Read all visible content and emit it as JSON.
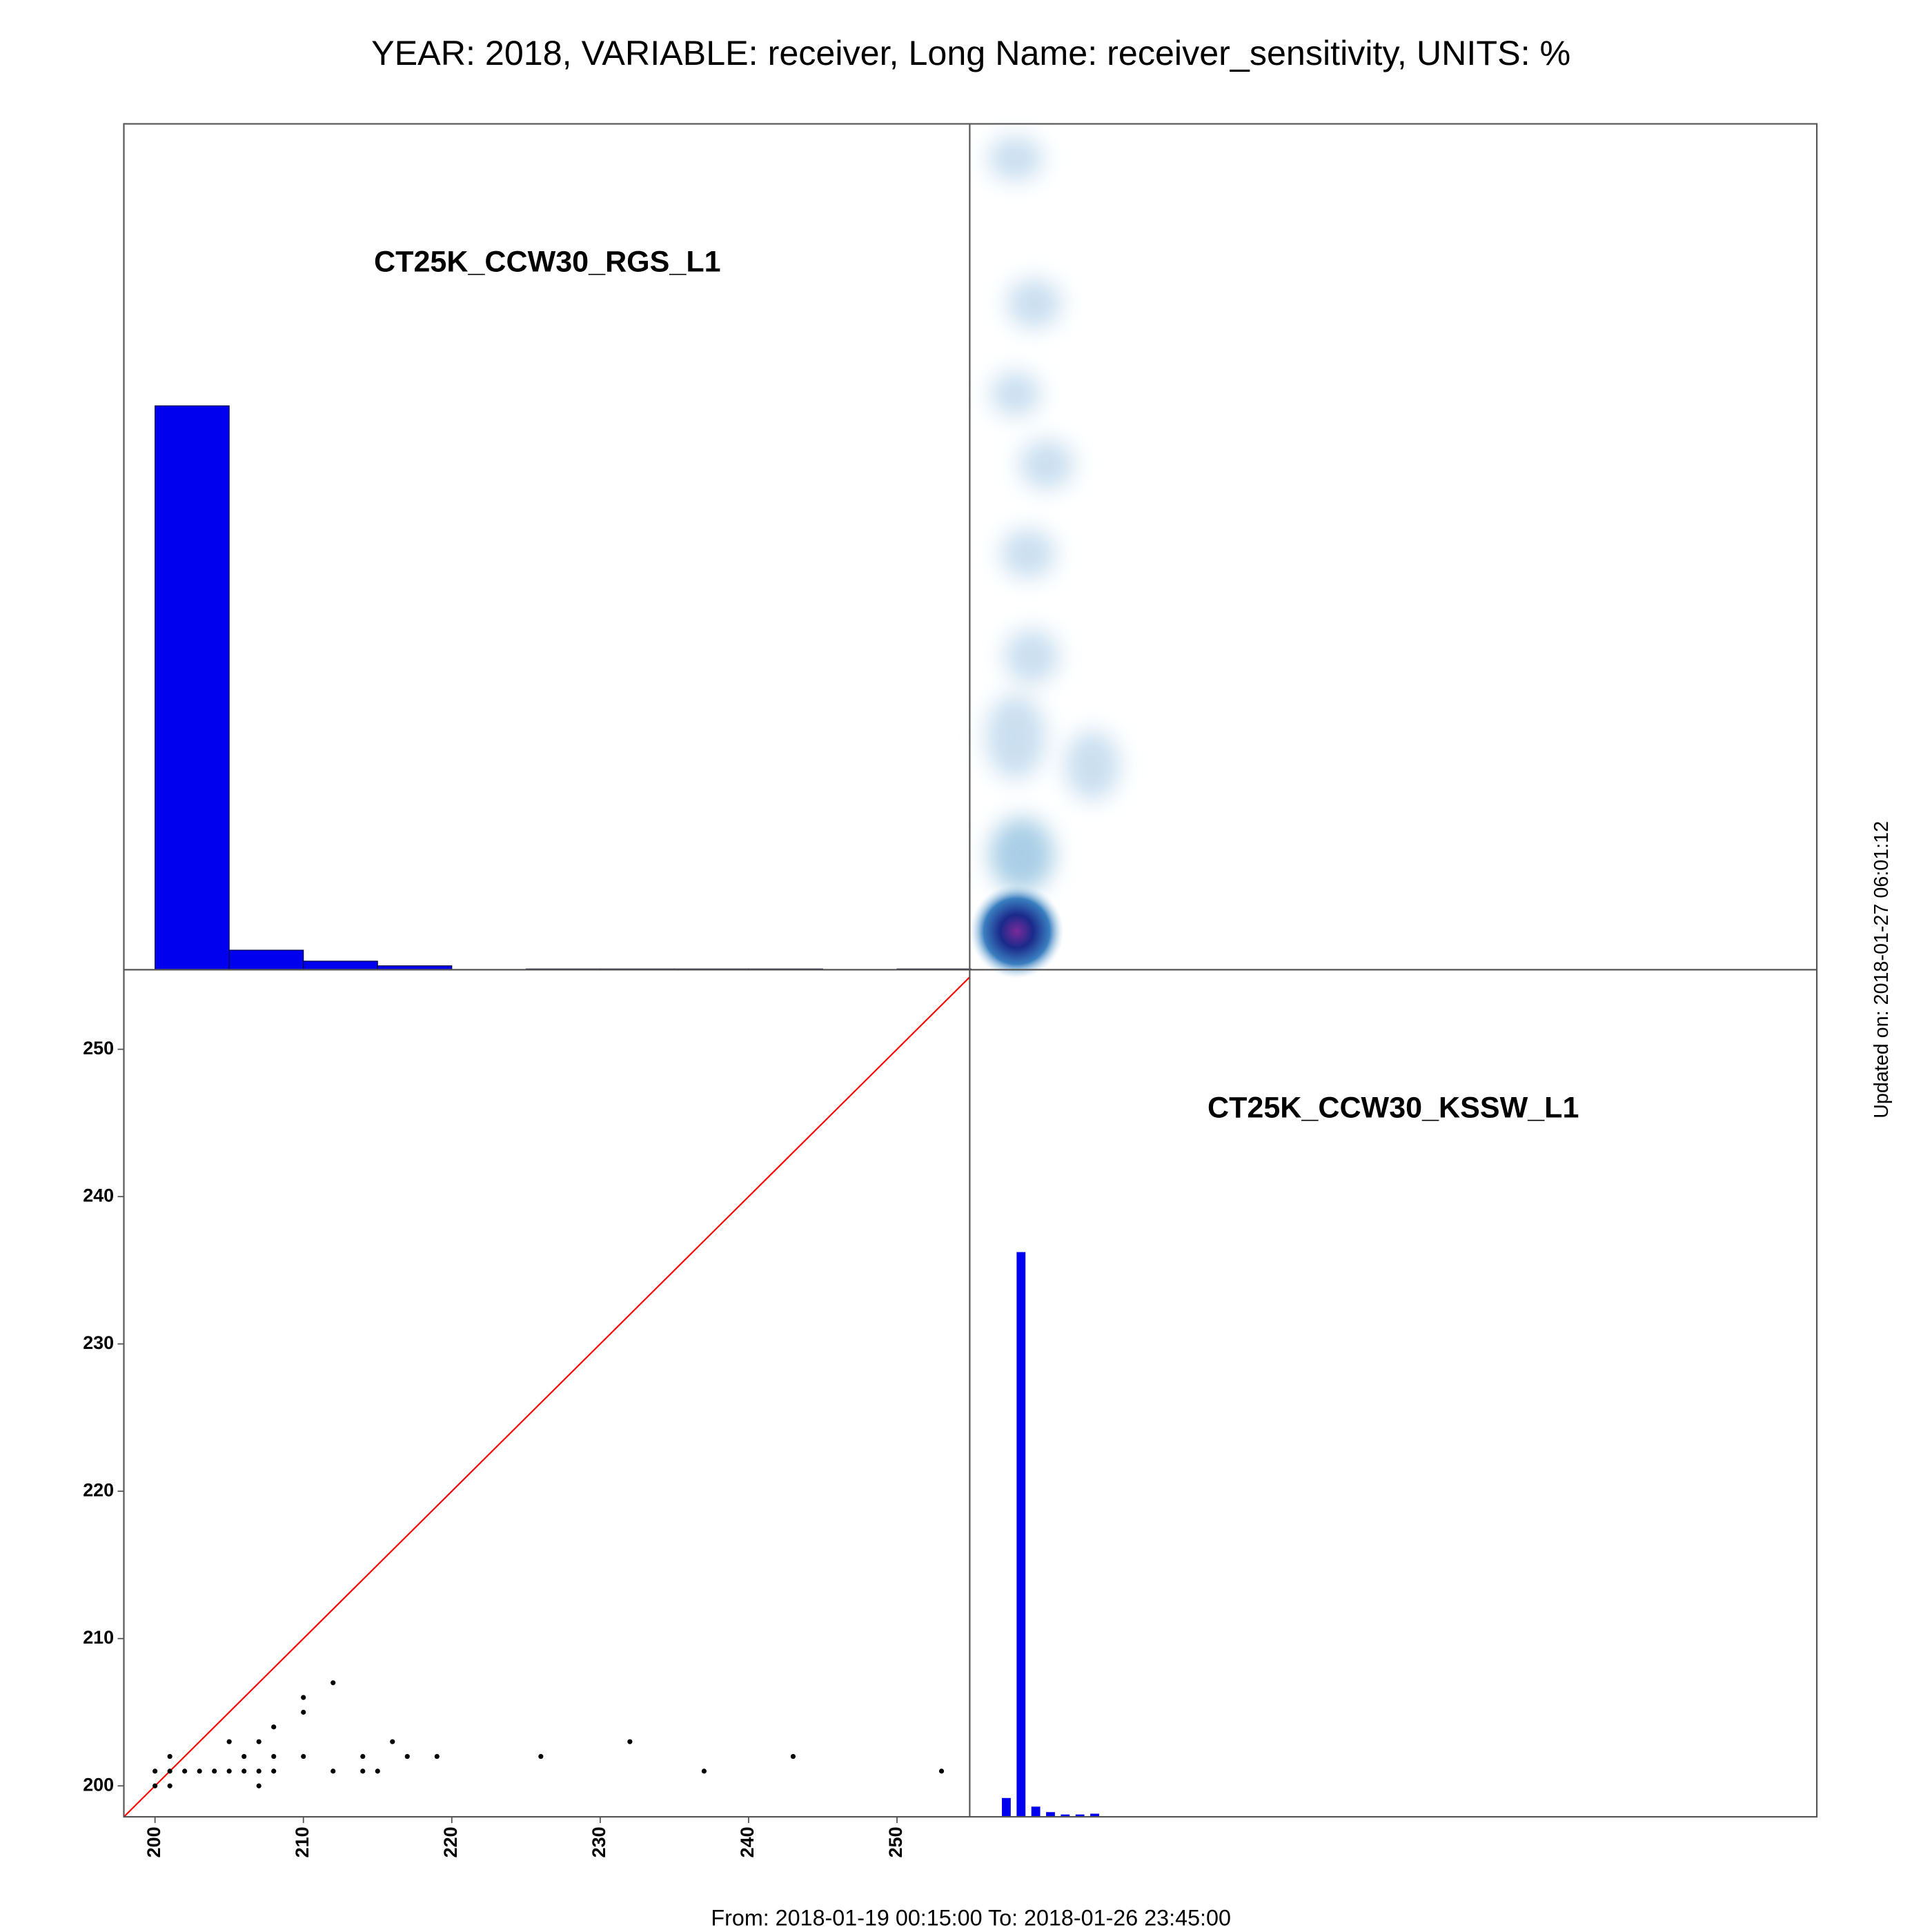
{
  "title": "YEAR: 2018, VARIABLE: receiver, Long Name: receiver_sensitivity, UNITS: %",
  "footer": "From: 2018-01-19 00:15:00 To: 2018-01-26 23:45:00",
  "updated": "Updated on: 2018-01-27 06:01:12",
  "chart_data": [
    {
      "type": "histogram",
      "title": "CT25K_CCW30_RGS_L1",
      "color": "#0000ee",
      "bins": [
        200,
        205,
        210,
        215,
        220,
        225,
        230,
        235,
        240,
        245,
        250,
        255
      ],
      "values": [
        720,
        25,
        11,
        5,
        0,
        1,
        1,
        1,
        1,
        0,
        1
      ],
      "xlim": [
        197.9,
        254.9
      ],
      "ylim": [
        0,
        1080
      ]
    },
    {
      "type": "scatter",
      "color": "#000000",
      "line_color": "#ff0000",
      "x": [
        200,
        200,
        201,
        201,
        201,
        202,
        203,
        204,
        205,
        205,
        206,
        206,
        207,
        207,
        207,
        208,
        208,
        208,
        210,
        210,
        210,
        212,
        212,
        214,
        214,
        215,
        216,
        217,
        219,
        226,
        232,
        237,
        243,
        253
      ],
      "y": [
        200,
        201,
        200,
        201,
        202,
        201,
        201,
        201,
        201,
        203,
        201,
        202,
        200,
        201,
        203,
        201,
        202,
        204,
        202,
        205,
        206,
        201,
        207,
        201,
        202,
        201,
        203,
        202,
        202,
        202,
        203,
        201,
        202,
        201
      ],
      "xlim": [
        197.9,
        254.9
      ],
      "ylim": [
        197.9,
        255.4
      ],
      "xticks": [
        200,
        210,
        220,
        230,
        240,
        250
      ],
      "yticks": [
        200,
        210,
        220,
        230,
        240,
        250
      ]
    },
    {
      "type": "histogram",
      "title": "CT25K_CCW30_KSSW_L1",
      "color": "#0000ee",
      "bins": [
        200,
        201,
        202,
        203,
        204,
        205,
        206,
        207
      ],
      "values": [
        24,
        720,
        13,
        6,
        3,
        3,
        4
      ],
      "xlim": [
        197.9,
        255.4
      ],
      "ylim": [
        0,
        1080
      ]
    }
  ]
}
